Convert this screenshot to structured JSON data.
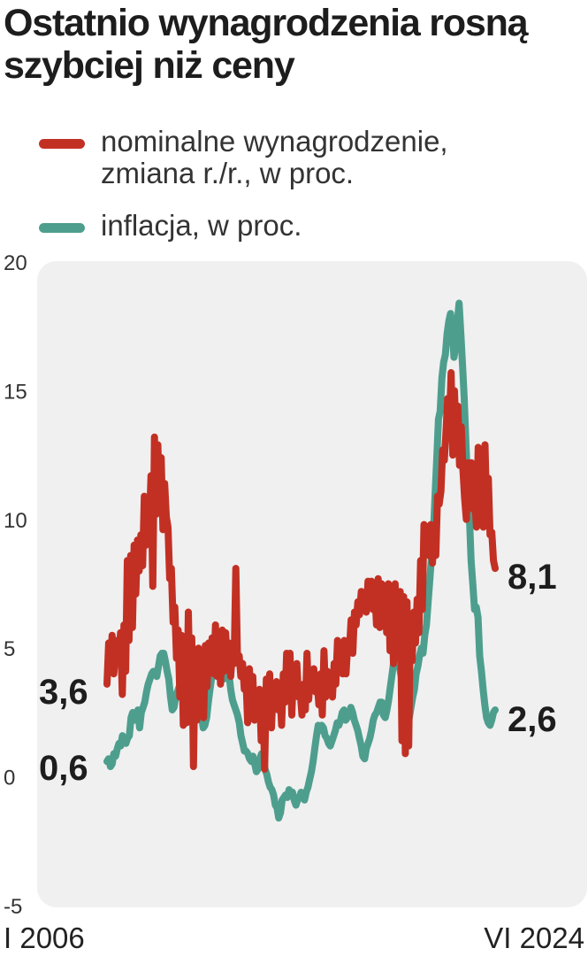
{
  "chart_data": {
    "type": "line",
    "title": "Ostatnio wynagrodzenia rosną szybciej niż ceny",
    "x_start_label": "I 2006",
    "x_end_label": "VI 2024",
    "ylim": [
      -5,
      20
    ],
    "yticks": [
      20,
      15,
      10,
      5,
      0,
      -5
    ],
    "ytick_labels": [
      "20",
      "15",
      "10",
      "5",
      "0",
      "-5"
    ],
    "legend": [
      "nominalne wynagrodzenie, zmiana r./r., w proc.",
      "inflacja, w proc."
    ],
    "colors": {
      "wages": "#c23024",
      "inflation": "#4e9e8e",
      "plot_bg": "#f0f0f0",
      "annotation": "#1d1d1d"
    },
    "start_labels": {
      "wages": "3,6",
      "inflation": "0,6"
    },
    "end_labels": {
      "wages": "8,1",
      "inflation": "2,6"
    },
    "series": [
      {
        "name": "nominalne wynagrodzenie, zmiana r./r., w proc.",
        "key": "wages",
        "values": [
          3.6,
          5.2,
          4.1,
          5.5,
          4.0,
          4.8,
          5.3,
          4.5,
          5.6,
          3.2,
          5.9,
          4.1,
          8.4,
          5.3,
          8.6,
          5.8,
          9.0,
          7.1,
          9.2,
          8.0,
          9.4,
          8.2,
          10.9,
          9.0,
          10.6,
          9.8,
          11.7,
          7.4,
          13.2,
          10.2,
          12.9,
          10.7,
          12.4,
          9.6,
          11.4,
          10.1,
          9.7,
          7.7,
          8.1,
          6.0,
          6.6,
          4.6,
          5.7,
          3.1,
          5.5,
          2.0,
          4.0,
          2.1,
          6.4,
          3.3,
          5.4,
          0.4,
          4.8,
          2.2,
          5.0,
          3.2,
          4.5,
          2.3,
          5.1,
          3.5,
          5.2,
          4.1,
          5.4,
          4.0,
          5.9,
          3.9,
          5.6,
          3.6,
          5.7,
          4.1,
          5.6,
          4.3,
          5.2,
          3.9,
          4.9,
          4.4,
          8.1,
          4.5,
          4.7,
          3.9,
          4.4,
          3.4,
          3.8,
          2.1,
          4.2,
          3.2,
          3.9,
          2.2,
          3.1,
          2.4,
          3.4,
          1.4,
          3.0,
          0.3,
          3.8,
          2.2,
          4.0,
          1.9,
          3.4,
          2.9,
          3.7,
          2.6,
          3.3,
          2.0,
          4.0,
          2.9,
          4.8,
          3.4,
          4.8,
          2.4,
          4.1,
          3.3,
          4.4,
          3.1,
          3.3,
          2.4,
          3.6,
          2.6,
          4.8,
          3.0,
          3.9,
          3.5,
          4.2,
          3.3,
          3.7,
          2.8,
          4.0,
          2.4,
          4.9,
          3.1,
          4.1,
          3.6,
          4.0,
          3.1,
          4.4,
          3.6,
          5.3,
          4.1,
          5.1,
          4.0,
          5.3,
          4.0,
          5.1,
          4.9,
          6.1,
          4.8,
          6.4,
          5.9,
          6.8,
          6.3,
          7.2,
          6.9,
          7.1,
          6.4,
          7.6,
          6.8,
          7.6,
          6.5,
          7.3,
          5.9,
          7.7,
          5.8,
          7.5,
          6.2,
          7.0,
          5.6,
          7.5,
          4.9,
          6.6,
          4.4,
          7.5,
          5.3,
          4.6,
          7.2,
          1.4,
          7.0,
          0.9,
          6.8,
          1.2,
          6.1,
          4.5,
          6.4,
          5.2,
          6.9,
          5.6,
          8.4,
          6.5,
          9.8,
          9.7,
          9.3,
          8.6,
          9.8,
          8.3,
          9.7,
          8.6,
          10.9,
          10.6,
          11.1,
          12.7,
          12.3,
          13.4,
          14.7,
          13.6,
          15.7,
          12.5,
          15.0,
          13.1,
          14.4,
          12.1,
          13.6,
          11.9,
          10.8,
          10.0,
          12.2,
          10.9,
          12.2,
          10.4,
          10.7,
          9.7,
          12.8,
          10.6,
          11.8,
          9.7,
          12.9,
          10.3,
          11.6,
          9.4,
          9.5,
          8.4,
          8.1
        ]
      },
      {
        "name": "inflacja, w proc.",
        "key": "inflation",
        "values": [
          0.6,
          0.7,
          0.4,
          0.5,
          0.9,
          0.8,
          1.1,
          1.3,
          1.2,
          1.6,
          1.5,
          1.3,
          1.5,
          1.6,
          2.3,
          2.5,
          2.2,
          2.4,
          2.6,
          1.9,
          2.5,
          2.7,
          2.9,
          3.3,
          3.6,
          3.8,
          4.0,
          4.1,
          4.0,
          3.9,
          4.3,
          4.7,
          4.8,
          4.8,
          4.5,
          4.1,
          3.8,
          3.1,
          2.6,
          2.7,
          3.1,
          3.3,
          3.5,
          3.6,
          3.5,
          2.7,
          2.4,
          2.6,
          2.8,
          3.1,
          3.0,
          3.3,
          3.3,
          3.0,
          2.7,
          2.4,
          1.9,
          2.0,
          2.3,
          2.9,
          3.4,
          3.9,
          4.0,
          4.1,
          4.2,
          4.1,
          4.0,
          3.9,
          3.8,
          3.9,
          4.2,
          4.0,
          3.4,
          3.0,
          2.8,
          2.6,
          2.4,
          2.1,
          1.6,
          1.3,
          1.0,
          1.0,
          0.9,
          0.7,
          0.6,
          0.8,
          0.5,
          0.2,
          0.3,
          0.7,
          0.9,
          0.6,
          0.3,
          0.1,
          -0.2,
          -0.4,
          -0.5,
          -0.7,
          -1.1,
          -1.2,
          -1.6,
          -1.4,
          -0.9,
          -0.8,
          -0.7,
          -0.8,
          -0.5,
          -0.7,
          -0.6,
          -0.9,
          -1.1,
          -0.9,
          -0.8,
          -0.6,
          -0.8,
          -0.9,
          -0.6,
          -0.4,
          -0.1,
          0.2,
          0.6,
          1.1,
          1.6,
          2.0,
          1.8,
          2.0,
          1.9,
          1.6,
          1.5,
          1.3,
          1.2,
          1.4,
          1.6,
          1.8,
          2.1,
          2.0,
          2.2,
          2.5,
          2.6,
          2.2,
          2.3,
          2.4,
          2.7,
          2.5,
          2.2,
          2.0,
          1.8,
          1.5,
          1.2,
          0.8,
          0.7,
          1.1,
          1.3,
          1.5,
          1.8,
          2.2,
          2.4,
          2.5,
          2.7,
          2.9,
          2.9,
          2.4,
          2.3,
          2.6,
          3.0,
          3.5,
          4.0,
          4.5,
          4.7,
          4.7,
          4.4,
          4.0,
          3.7,
          3.3,
          2.9,
          2.4,
          2.3,
          2.7,
          3.1,
          3.4,
          4.0,
          4.3,
          4.7,
          5.0,
          4.8,
          5.5,
          5.9,
          6.8,
          7.7,
          8.6,
          9.4,
          10.9,
          12.4,
          13.9,
          14.2,
          15.5,
          16.1,
          16.4,
          17.2,
          17.7,
          18.0,
          17.5,
          16.3,
          16.7,
          17.7,
          18.4,
          17.2,
          16.0,
          14.7,
          12.9,
          11.4,
          10.1,
          8.4,
          7.5,
          6.5,
          6.6,
          6.2,
          4.7,
          4.1,
          3.4,
          2.8,
          2.3,
          2.1,
          2.0,
          2.2,
          2.5,
          2.6
        ]
      }
    ]
  }
}
